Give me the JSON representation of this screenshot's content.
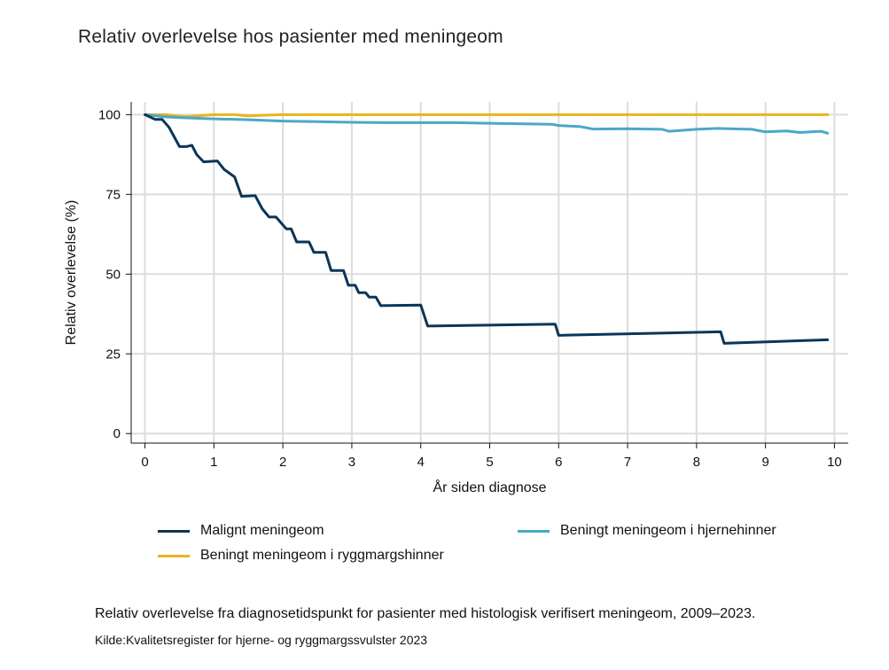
{
  "chart_data": {
    "type": "line",
    "title": "Relativ overlevelse hos pasienter med meningeom",
    "xlabel": "År siden diagnose",
    "ylabel": "Relativ overlevelse (%)",
    "xlim": [
      -0.2,
      10.2
    ],
    "ylim": [
      -3,
      104
    ],
    "x_ticks": [
      "0",
      "1",
      "2",
      "3",
      "4",
      "5",
      "6",
      "7",
      "8",
      "9",
      "10"
    ],
    "y_ticks": [
      "0",
      "25",
      "50",
      "75",
      "100"
    ],
    "grid": true,
    "legend_position": "bottom",
    "series": [
      {
        "name": "Malignt meningeom",
        "color": "#0b3558",
        "step": true,
        "points": [
          [
            0,
            100
          ],
          [
            0.15,
            98.5
          ],
          [
            0.25,
            98.5
          ],
          [
            0.35,
            96
          ],
          [
            0.4,
            94
          ],
          [
            0.5,
            90
          ],
          [
            0.6,
            90
          ],
          [
            0.68,
            90.4
          ],
          [
            0.75,
            87.5
          ],
          [
            0.85,
            85.2
          ],
          [
            1.05,
            85.5
          ],
          [
            1.15,
            82.8
          ],
          [
            1.3,
            80.5
          ],
          [
            1.4,
            74.4
          ],
          [
            1.6,
            74.6
          ],
          [
            1.7,
            70.5
          ],
          [
            1.8,
            67.9
          ],
          [
            1.9,
            67.9
          ],
          [
            2.05,
            64.2
          ],
          [
            2.12,
            64.2
          ],
          [
            2.2,
            60.1
          ],
          [
            2.38,
            60.1
          ],
          [
            2.45,
            56.8
          ],
          [
            2.62,
            56.8
          ],
          [
            2.7,
            51.1
          ],
          [
            2.88,
            51.1
          ],
          [
            2.95,
            46.5
          ],
          [
            3.05,
            46.5
          ],
          [
            3.1,
            44.2
          ],
          [
            3.2,
            44.2
          ],
          [
            3.25,
            42.8
          ],
          [
            3.35,
            42.8
          ],
          [
            3.42,
            40.1
          ],
          [
            4.0,
            40.3
          ],
          [
            4.1,
            33.7
          ],
          [
            5.95,
            34.3
          ],
          [
            6.0,
            30.8
          ],
          [
            8.35,
            31.9
          ],
          [
            8.4,
            28.3
          ],
          [
            9.9,
            29.4
          ]
        ]
      },
      {
        "name": "Beningt meningeom i hjernehinner",
        "color": "#4aa8c8",
        "step": false,
        "points": [
          [
            0,
            100
          ],
          [
            0.3,
            99.3
          ],
          [
            0.6,
            99.0
          ],
          [
            1.0,
            98.7
          ],
          [
            1.5,
            98.4
          ],
          [
            2.0,
            98.0
          ],
          [
            2.5,
            97.8
          ],
          [
            3.0,
            97.6
          ],
          [
            3.5,
            97.5
          ],
          [
            4.0,
            97.5
          ],
          [
            4.5,
            97.5
          ],
          [
            5.0,
            97.3
          ],
          [
            5.5,
            97.1
          ],
          [
            5.9,
            97.0
          ],
          [
            6.0,
            96.6
          ],
          [
            6.3,
            96.3
          ],
          [
            6.5,
            95.5
          ],
          [
            7.0,
            95.6
          ],
          [
            7.5,
            95.4
          ],
          [
            7.6,
            94.8
          ],
          [
            8.0,
            95.4
          ],
          [
            8.3,
            95.7
          ],
          [
            8.8,
            95.4
          ],
          [
            9.0,
            94.6
          ],
          [
            9.3,
            94.9
          ],
          [
            9.5,
            94.4
          ],
          [
            9.8,
            94.8
          ],
          [
            9.9,
            94.2
          ]
        ]
      },
      {
        "name": "Beningt meningeom i ryggmargshinner",
        "color": "#e8b41f",
        "step": false,
        "points": [
          [
            0,
            100
          ],
          [
            0.3,
            100
          ],
          [
            0.45,
            99.6
          ],
          [
            0.6,
            99.4
          ],
          [
            0.8,
            99.7
          ],
          [
            1.0,
            100
          ],
          [
            1.3,
            100
          ],
          [
            1.5,
            99.6
          ],
          [
            1.7,
            99.8
          ],
          [
            2.0,
            100
          ],
          [
            9.9,
            100
          ]
        ]
      }
    ]
  },
  "caption": "Relativ overlevelse fra diagnosetidspunkt for pasienter med histologisk verifisert meningeom, 2009–2023.",
  "source": "Kilde:Kvalitetsregister for hjerne- og ryggmargssvulster 2023"
}
